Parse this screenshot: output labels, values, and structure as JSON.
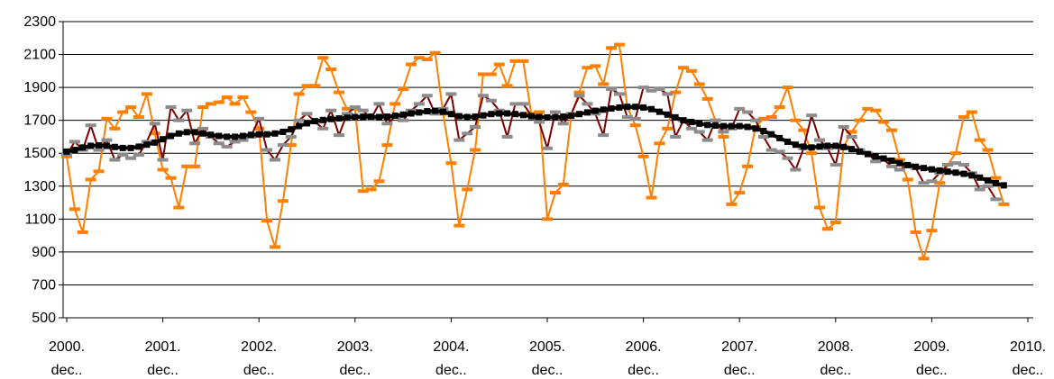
{
  "chart_data": {
    "type": "line",
    "title": "",
    "xlabel": "",
    "ylabel": "",
    "ylim": [
      500,
      2300
    ],
    "yticks": [
      500,
      700,
      900,
      1100,
      1300,
      1500,
      1700,
      1900,
      2100,
      2300
    ],
    "grid": "horizontal",
    "legend": "none",
    "x_start": "2000. dec.",
    "x_end": "2011. feb.",
    "x_tick_labels": [
      {
        "line1": "2000.",
        "line2": "dec.."
      },
      {
        "line1": "2001.",
        "line2": "dec.."
      },
      {
        "line1": "2002.",
        "line2": "dec.."
      },
      {
        "line1": "2003.",
        "line2": "dec.."
      },
      {
        "line1": "2004.",
        "line2": "dec.."
      },
      {
        "line1": "2005.",
        "line2": "dec.."
      },
      {
        "line1": "2006.",
        "line2": "dec.."
      },
      {
        "line1": "2007.",
        "line2": "dec.."
      },
      {
        "line1": "2008.",
        "line2": "dec.."
      },
      {
        "line1": "2009.",
        "line2": "dec.."
      },
      {
        "line1": "2010.",
        "line2": "dec.."
      }
    ],
    "series": [
      {
        "color": "#ff8000",
        "marker": "dash",
        "values": [
          1480,
          1160,
          1020,
          1340,
          1390,
          1710,
          1650,
          1750,
          1780,
          1720,
          1860,
          1620,
          1400,
          1350,
          1170,
          1420,
          1420,
          1780,
          1800,
          1810,
          1840,
          1800,
          1840,
          1750,
          1650,
          1090,
          930,
          1210,
          1550,
          1860,
          1910,
          1910,
          2080,
          2010,
          1870,
          1770,
          1770,
          1270,
          1280,
          1330,
          1550,
          1800,
          1890,
          2040,
          2080,
          2070,
          2110,
          1740,
          1440,
          1060,
          1280,
          1520,
          1980,
          1980,
          2040,
          1910,
          2060,
          2060,
          1740,
          1750,
          1100,
          1260,
          1310,
          1730,
          1870,
          2020,
          2030,
          1920,
          2140,
          2160,
          1780,
          1670,
          1480,
          1230,
          1560,
          1650,
          1870,
          2020,
          2000,
          1920,
          1830,
          1700,
          1600,
          1190,
          1260,
          1420,
          1660,
          1710,
          1720,
          1780,
          1900,
          1700,
          1640,
          1500,
          1170,
          1040,
          1080,
          1540,
          1630,
          1700,
          1770,
          1760,
          1690,
          1640,
          1460,
          1340,
          1020,
          860,
          1030,
          1320,
          1430,
          1500,
          1720,
          1750,
          1580,
          1520,
          1350,
          1190
        ]
      },
      {
        "color": "#7a0000",
        "marker": "dash",
        "marker_color": "#8c8c8c",
        "values": [
          1490,
          1570,
          1520,
          1670,
          1520,
          1580,
          1460,
          1490,
          1470,
          1490,
          1570,
          1680,
          1460,
          1780,
          1700,
          1760,
          1560,
          1650,
          1600,
          1560,
          1540,
          1570,
          1580,
          1600,
          1710,
          1520,
          1460,
          1550,
          1600,
          1700,
          1740,
          1690,
          1650,
          1760,
          1610,
          1740,
          1780,
          1760,
          1710,
          1800,
          1680,
          1720,
          1700,
          1760,
          1800,
          1850,
          1740,
          1770,
          1860,
          1580,
          1620,
          1660,
          1850,
          1820,
          1760,
          1600,
          1800,
          1800,
          1730,
          1690,
          1530,
          1750,
          1680,
          1740,
          1850,
          1800,
          1740,
          1610,
          1890,
          1860,
          1720,
          1710,
          1900,
          1880,
          1890,
          1860,
          1600,
          1700,
          1650,
          1630,
          1580,
          1700,
          1630,
          1650,
          1770,
          1750,
          1700,
          1600,
          1520,
          1510,
          1470,
          1400,
          1530,
          1730,
          1580,
          1530,
          1430,
          1660,
          1600,
          1520,
          1500,
          1450,
          1460,
          1420,
          1400,
          1430,
          1410,
          1320,
          1330,
          1380,
          1430,
          1440,
          1430,
          1380,
          1280,
          1300,
          1220
        ]
      },
      {
        "color": "#000000",
        "marker": "square",
        "values": [
          1510,
          1520,
          1535,
          1545,
          1548,
          1545,
          1538,
          1532,
          1532,
          1540,
          1552,
          1565,
          1585,
          1605,
          1620,
          1628,
          1628,
          1620,
          1612,
          1605,
          1600,
          1600,
          1605,
          1612,
          1615,
          1615,
          1620,
          1630,
          1645,
          1665,
          1682,
          1695,
          1702,
          1708,
          1712,
          1716,
          1720,
          1722,
          1722,
          1720,
          1722,
          1728,
          1735,
          1742,
          1748,
          1755,
          1758,
          1752,
          1738,
          1725,
          1720,
          1722,
          1730,
          1738,
          1742,
          1742,
          1738,
          1732,
          1725,
          1720,
          1718,
          1718,
          1722,
          1728,
          1738,
          1748,
          1758,
          1765,
          1772,
          1778,
          1782,
          1782,
          1778,
          1768,
          1752,
          1735,
          1718,
          1700,
          1690,
          1680,
          1672,
          1668,
          1665,
          1665,
          1665,
          1660,
          1650,
          1635,
          1615,
          1592,
          1570,
          1552,
          1540,
          1535,
          1540,
          1545,
          1545,
          1538,
          1525,
          1510,
          1495,
          1480,
          1468,
          1455,
          1440,
          1428,
          1418,
          1410,
          1402,
          1395,
          1388,
          1382,
          1375,
          1365,
          1352,
          1335,
          1318,
          1305
        ]
      }
    ]
  }
}
